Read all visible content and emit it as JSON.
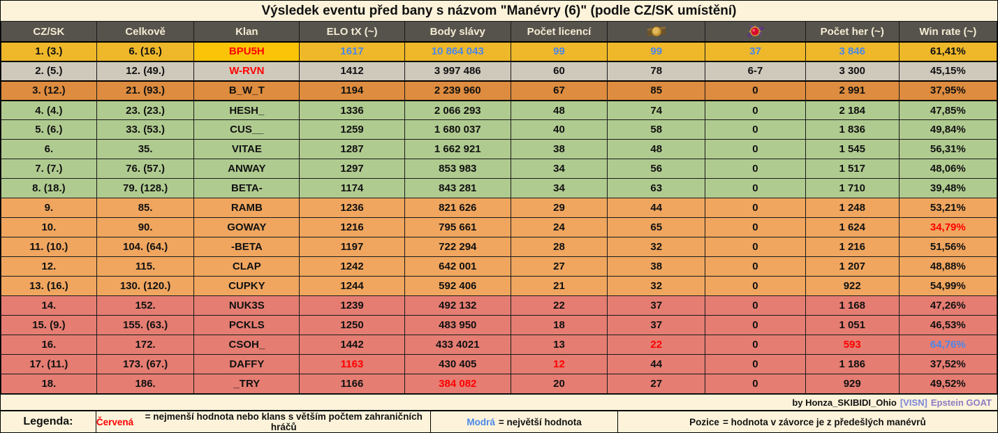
{
  "title": "Výsledek eventu před bany s názvom \"Manévry (6)\" (podle CZ/SK umístění)",
  "colors": {
    "accent_red": "#ff0000",
    "accent_blue": "#4a86e8",
    "gold_row": "#efb82a",
    "gold_klan": "#fcc408",
    "silver_row": "#cfc9bc",
    "bronze_row": "#de8c3f",
    "green_row": "#b0cb90",
    "orange_row": "#f0a65f",
    "red_row": "#e57d72",
    "cream": "#fcf3da",
    "header_bg": "#56534d",
    "header_text": "#f4ebd3",
    "visn_color": "#7b86d9",
    "goat_color": "#8e7cc3"
  },
  "columns": [
    {
      "key": "czsk",
      "label": "CZ/SK"
    },
    {
      "key": "celkove",
      "label": "Celkově"
    },
    {
      "key": "klan",
      "label": "Klan"
    },
    {
      "key": "elo_tx",
      "label": "ELO tX (~)"
    },
    {
      "key": "body_slavy",
      "label": "Body slávy"
    },
    {
      "key": "pocet_licenci",
      "label": "Počet licencí"
    },
    {
      "key": "gold_medal",
      "label": "",
      "icon": "gold-medal-icon"
    },
    {
      "key": "ruby_medal",
      "label": "",
      "icon": "ruby-medal-icon"
    },
    {
      "key": "pocet_her",
      "label": "Počet her (~)"
    },
    {
      "key": "win_rate",
      "label": "Win rate (~)"
    }
  ],
  "rows": [
    {
      "tier": "gold",
      "cells": [
        "1. (3.)",
        "6. (16.)",
        "BPU5H",
        "1617",
        "10 864 043",
        "99",
        "99",
        "37",
        "3 846",
        "61,41%"
      ],
      "colors": [
        null,
        null,
        "red",
        "blue",
        "blue",
        "blue",
        "blue",
        "blue",
        "blue",
        null
      ]
    },
    {
      "tier": "silver",
      "cells": [
        "2. (5.)",
        "12. (49.)",
        "W-RVN",
        "1412",
        "3 997 486",
        "60",
        "78",
        "6-7",
        "3 300",
        "45,15%"
      ],
      "colors": [
        null,
        null,
        "red",
        null,
        null,
        null,
        null,
        null,
        null,
        null
      ]
    },
    {
      "tier": "bronze",
      "cells": [
        "3. (12.)",
        "21. (93.)",
        "B_W_T",
        "1194",
        "2 239 960",
        "67",
        "85",
        "0",
        "2 991",
        "37,95%"
      ],
      "colors": [
        null,
        null,
        null,
        null,
        null,
        null,
        null,
        null,
        null,
        null
      ]
    },
    {
      "tier": "green",
      "cells": [
        "4. (4.)",
        "23. (23.)",
        "HESH_",
        "1336",
        "2 066 293",
        "48",
        "74",
        "0",
        "2 184",
        "47,85%"
      ],
      "colors": [
        null,
        null,
        null,
        null,
        null,
        null,
        null,
        null,
        null,
        null
      ]
    },
    {
      "tier": "green",
      "cells": [
        "5. (6.)",
        "33. (53.)",
        "CUS__",
        "1259",
        "1 680 037",
        "40",
        "58",
        "0",
        "1 836",
        "49,84%"
      ],
      "colors": [
        null,
        null,
        null,
        null,
        null,
        null,
        null,
        null,
        null,
        null
      ]
    },
    {
      "tier": "green",
      "cells": [
        "6.",
        "35.",
        "VITAE",
        "1287",
        "1 662 921",
        "38",
        "48",
        "0",
        "1 545",
        "56,31%"
      ],
      "colors": [
        null,
        null,
        null,
        null,
        null,
        null,
        null,
        null,
        null,
        null
      ]
    },
    {
      "tier": "green",
      "cells": [
        "7. (7.)",
        "76. (57.)",
        "ANWAY",
        "1297",
        "853 983",
        "34",
        "56",
        "0",
        "1 517",
        "48,06%"
      ],
      "colors": [
        null,
        null,
        null,
        null,
        null,
        null,
        null,
        null,
        null,
        null
      ]
    },
    {
      "tier": "green",
      "cells": [
        "8. (18.)",
        "79. (128.)",
        "BETA-",
        "1174",
        "843 281",
        "34",
        "63",
        "0",
        "1 710",
        "39,48%"
      ],
      "colors": [
        null,
        null,
        null,
        null,
        null,
        null,
        null,
        null,
        null,
        null
      ]
    },
    {
      "tier": "orange",
      "cells": [
        "9.",
        "85.",
        "RAMB",
        "1236",
        "821 626",
        "29",
        "44",
        "0",
        "1 248",
        "53,21%"
      ],
      "colors": [
        null,
        null,
        null,
        null,
        null,
        null,
        null,
        null,
        null,
        null
      ]
    },
    {
      "tier": "orange",
      "cells": [
        "10.",
        "90.",
        "GOWAY",
        "1216",
        "795 661",
        "24",
        "65",
        "0",
        "1 624",
        "34,79%"
      ],
      "colors": [
        null,
        null,
        null,
        null,
        null,
        null,
        null,
        null,
        null,
        "red"
      ]
    },
    {
      "tier": "orange",
      "cells": [
        "11. (10.)",
        "104. (64.)",
        "-BETA",
        "1197",
        "722 294",
        "28",
        "32",
        "0",
        "1 216",
        "51,56%"
      ],
      "colors": [
        null,
        null,
        null,
        null,
        null,
        null,
        null,
        null,
        null,
        null
      ]
    },
    {
      "tier": "orange",
      "cells": [
        "12.",
        "115.",
        "CLAP",
        "1242",
        "642 001",
        "27",
        "38",
        "0",
        "1 207",
        "48,88%"
      ],
      "colors": [
        null,
        null,
        null,
        null,
        null,
        null,
        null,
        null,
        null,
        null
      ]
    },
    {
      "tier": "orange",
      "cells": [
        "13. (16.)",
        "130. (120.)",
        "CUPKY",
        "1244",
        "592 406",
        "21",
        "32",
        "0",
        "922",
        "54,99%"
      ],
      "colors": [
        null,
        null,
        null,
        null,
        null,
        null,
        null,
        null,
        null,
        null
      ]
    },
    {
      "tier": "red",
      "cells": [
        "14.",
        "152.",
        "NUK3S",
        "1239",
        "492 132",
        "22",
        "37",
        "0",
        "1 168",
        "47,26%"
      ],
      "colors": [
        null,
        null,
        null,
        null,
        null,
        null,
        null,
        null,
        null,
        null
      ]
    },
    {
      "tier": "red",
      "cells": [
        "15. (9.)",
        "155. (63.)",
        "PCKLS",
        "1250",
        "483 950",
        "18",
        "37",
        "0",
        "1 051",
        "46,53%"
      ],
      "colors": [
        null,
        null,
        null,
        null,
        null,
        null,
        null,
        null,
        null,
        null
      ]
    },
    {
      "tier": "red",
      "cells": [
        "16.",
        "172.",
        "CSOH_",
        "1442",
        "433 4021",
        "13",
        "22",
        "0",
        "593",
        "64,76%"
      ],
      "colors": [
        null,
        null,
        null,
        null,
        null,
        null,
        "red",
        null,
        "red",
        "blue"
      ]
    },
    {
      "tier": "red",
      "cells": [
        "17. (11.)",
        "173. (67.)",
        "DAFFY",
        "1163",
        "430 405",
        "12",
        "44",
        "0",
        "1 186",
        "37,52%"
      ],
      "colors": [
        null,
        null,
        null,
        "red",
        null,
        "red",
        null,
        null,
        null,
        null
      ]
    },
    {
      "tier": "red",
      "cells": [
        "18.",
        "186.",
        "_TRY",
        "1166",
        "384 082",
        "20",
        "27",
        "0",
        "929",
        "49,52%"
      ],
      "colors": [
        null,
        null,
        null,
        null,
        "red",
        null,
        null,
        null,
        null,
        null
      ]
    }
  ],
  "footer": {
    "by": "by Honza_SKIBIDI_Ohio",
    "tag1": "[VISN]",
    "tag2": "Epstein GOAT"
  },
  "legend": {
    "label": "Legenda:",
    "red_term": "Červená",
    "red_text": "= nejmenší hodnota nebo klans s větším počtem zahraničních hráčů",
    "blue_term": "Modrá",
    "blue_text": "= největší hodnota",
    "pozice_term": "Pozice",
    "pozice_text": "= hodnota v závorce je z předešlých manévrů"
  }
}
